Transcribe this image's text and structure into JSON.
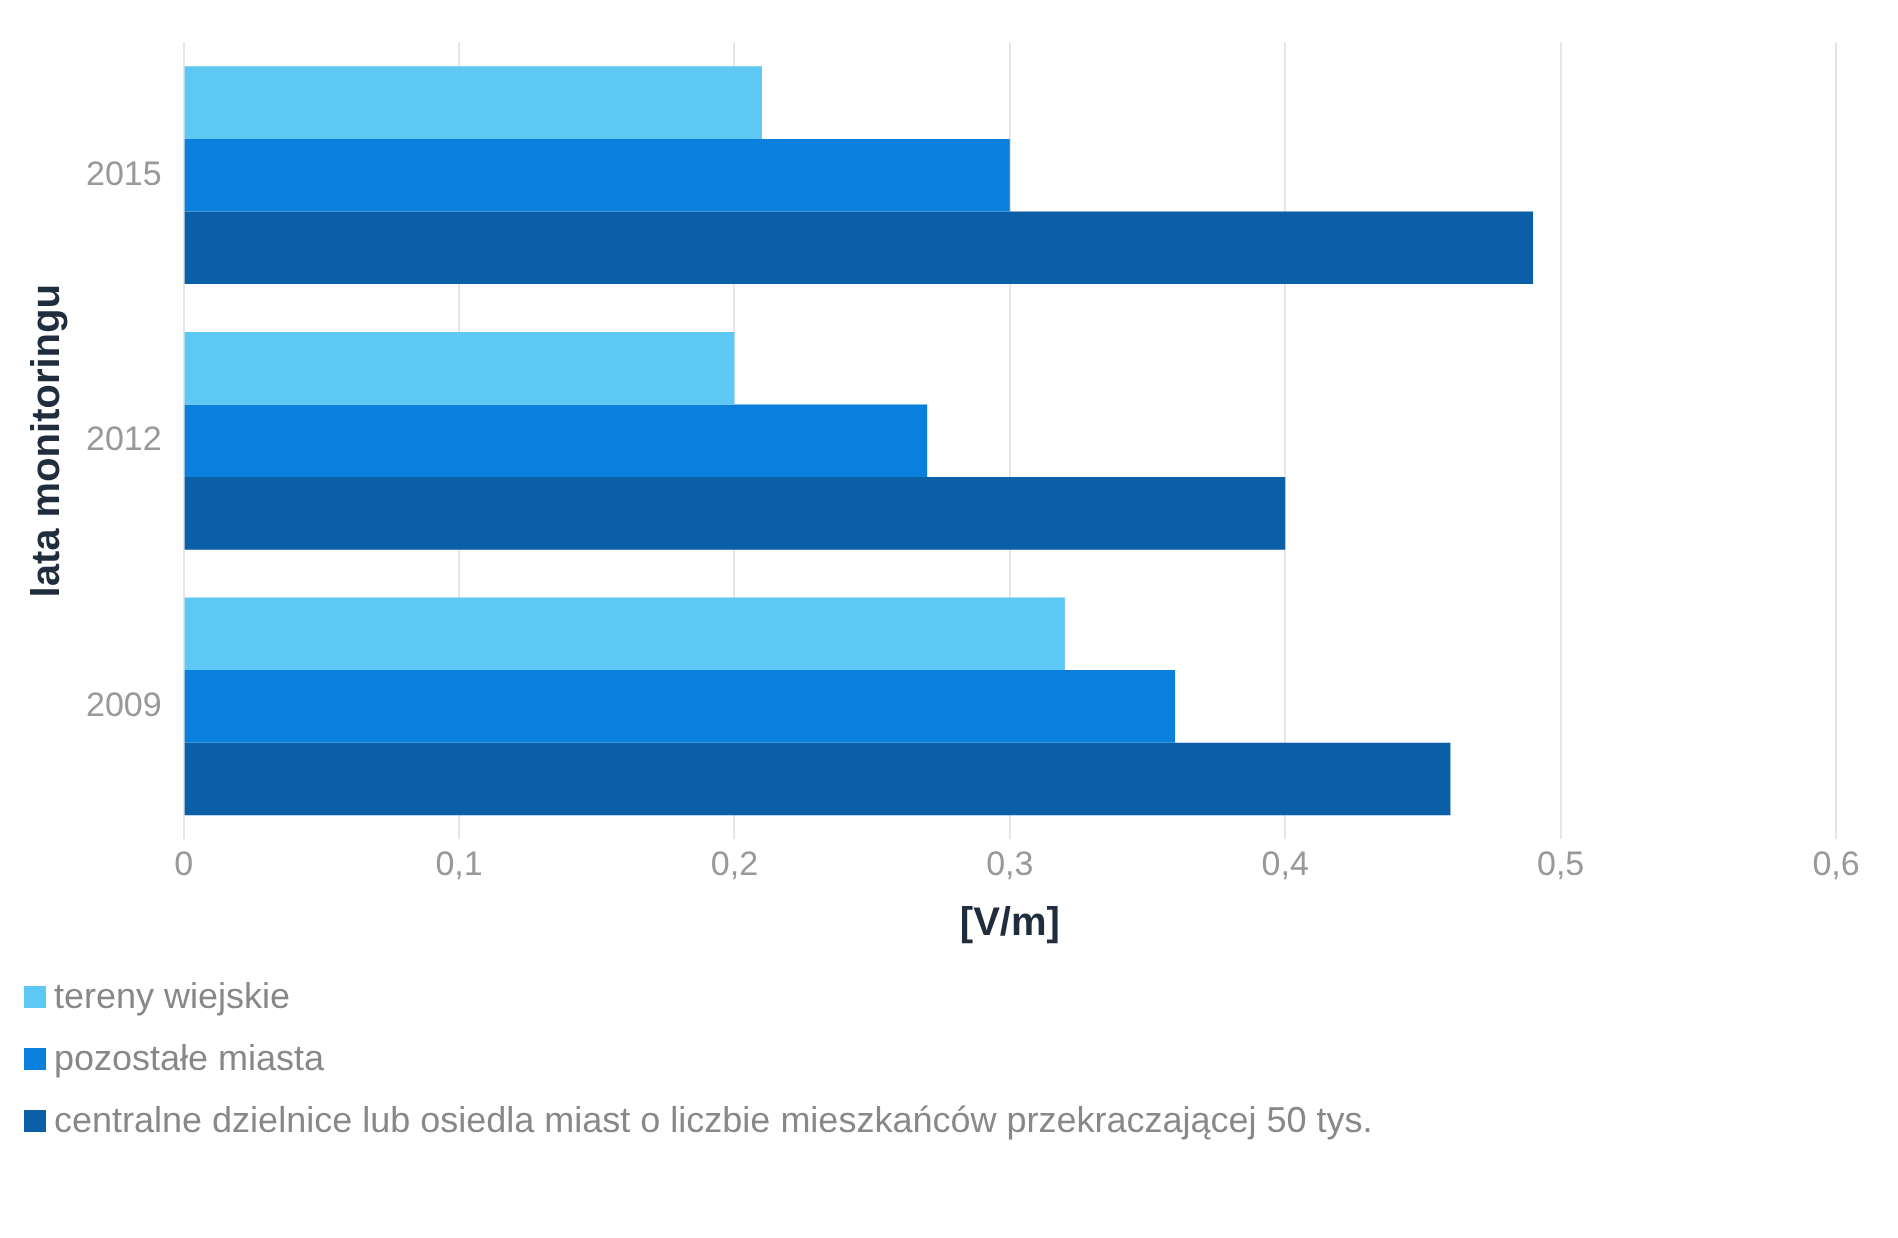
{
  "chart_data": {
    "type": "bar",
    "orientation": "horizontal",
    "xlabel": "[V/m]",
    "ylabel": "lata monitoringu",
    "categories": [
      "2015",
      "2012",
      "2009"
    ],
    "series": [
      {
        "name": "tereny wiejskie",
        "color": "#5ec8f4",
        "values": [
          0.21,
          0.2,
          0.32
        ]
      },
      {
        "name": "pozostałe miasta",
        "color": "#0a80dc",
        "values": [
          0.3,
          0.27,
          0.36
        ]
      },
      {
        "name": "centralne dzielnice lub osiedla miast o liczbie mieszkańców przekraczającej 50 tys.",
        "color": "#0b5fa6",
        "values": [
          0.49,
          0.4,
          0.46
        ]
      }
    ],
    "xlim": [
      0,
      0.6
    ],
    "xticks": [
      0,
      {
        "value": 0.1,
        "label": "0,1"
      },
      {
        "value": 0.2,
        "label": "0,2"
      },
      {
        "value": 0.3,
        "label": "0,3"
      },
      {
        "value": 0.4,
        "label": "0,4"
      },
      {
        "value": 0.5,
        "label": "0,5"
      },
      {
        "value": 0.6,
        "label": "0,6"
      }
    ],
    "grid": "x",
    "legend": "bottom"
  }
}
